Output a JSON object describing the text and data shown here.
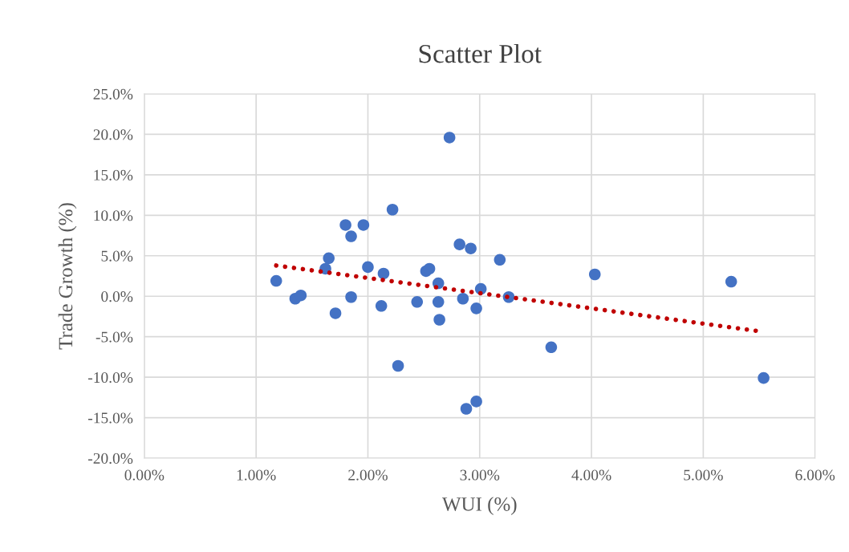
{
  "chart_data": {
    "type": "scatter",
    "title": "Scatter Plot",
    "xlabel": "WUI (%)",
    "ylabel": "Trade Growth (%)",
    "series": [
      {
        "color": "#4472c4",
        "marker": "circle",
        "x": [
          2.73,
          2.22,
          1.8,
          1.96,
          1.85,
          2.82,
          2.92,
          3.18,
          1.65,
          1.62,
          2.0,
          2.14,
          2.52,
          2.55,
          1.18,
          2.63,
          3.01,
          1.35,
          1.4,
          1.85,
          3.26,
          2.85,
          2.44,
          2.63,
          2.12,
          2.97,
          1.71,
          2.64,
          2.27,
          2.97,
          2.88,
          4.03,
          5.25,
          3.64,
          5.54
        ],
        "values": [
          19.6,
          10.7,
          8.8,
          8.8,
          7.4,
          6.4,
          5.9,
          4.5,
          4.7,
          3.4,
          3.6,
          2.8,
          3.1,
          3.4,
          1.9,
          1.6,
          0.9,
          -0.3,
          0.1,
          -0.1,
          -0.1,
          -0.3,
          -0.7,
          -0.7,
          -1.2,
          -1.5,
          -2.1,
          -2.9,
          -8.6,
          -13.0,
          -13.9,
          2.7,
          1.8,
          -6.3,
          -10.1
        ]
      },
      {
        "type": "line",
        "color": "#c00000",
        "line_style": "dotted",
        "marker": "none",
        "x": [
          1.18,
          5.49
        ],
        "values": [
          3.8,
          -4.3
        ]
      }
    ],
    "xlim": [
      0,
      6
    ],
    "xticks": [
      {
        "value": 0,
        "label": "0.00%"
      },
      {
        "value": 1,
        "label": "1.00%"
      },
      {
        "value": 2,
        "label": "2.00%"
      },
      {
        "value": 3,
        "label": "3.00%"
      },
      {
        "value": 4,
        "label": "4.00%"
      },
      {
        "value": 5,
        "label": "5.00%"
      },
      {
        "value": 6,
        "label": "6.00%"
      }
    ],
    "ylim": [
      -20,
      25
    ],
    "yticks": [
      {
        "value": -20,
        "label": "-20.0%"
      },
      {
        "value": -15,
        "label": "-15.0%"
      },
      {
        "value": -10,
        "label": "-10.0%"
      },
      {
        "value": -5,
        "label": "-5.0%"
      },
      {
        "value": 0,
        "label": "0.0%"
      },
      {
        "value": 5,
        "label": "5.0%"
      },
      {
        "value": 10,
        "label": "10.0%"
      },
      {
        "value": 15,
        "label": "15.0%"
      },
      {
        "value": 20,
        "label": "20.0%"
      },
      {
        "value": 25,
        "label": "25.0%"
      }
    ],
    "grid": true,
    "legend": false
  }
}
